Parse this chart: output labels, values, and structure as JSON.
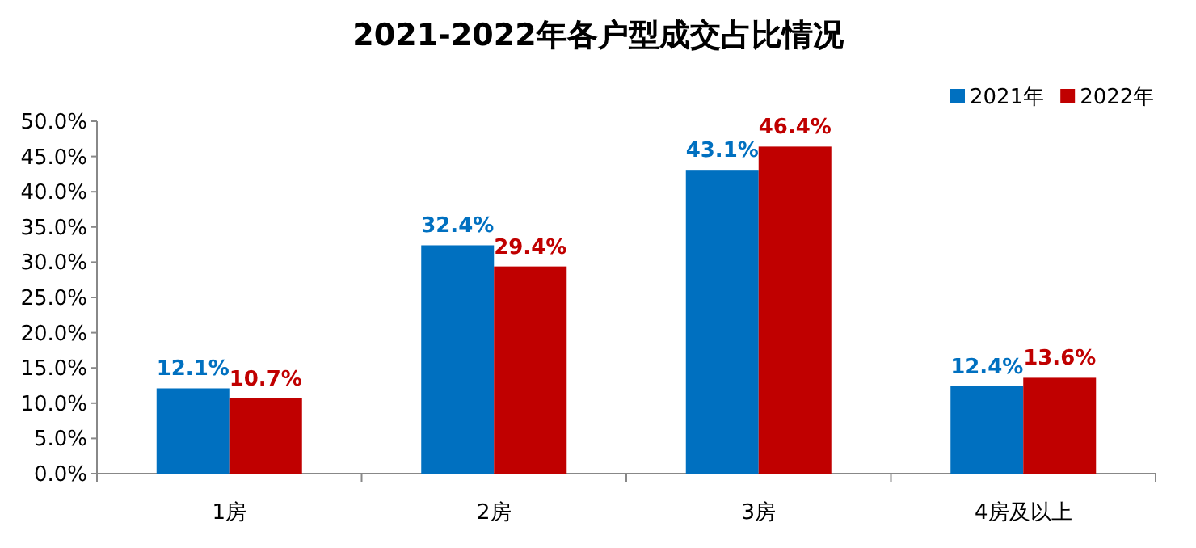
{
  "chart_data": {
    "type": "bar",
    "title": "2021-2022年各户型成交占比情况",
    "categories": [
      "1房",
      "2房",
      "3房",
      "4房及以上"
    ],
    "series": [
      {
        "name": "2021年",
        "color": "#0070c0",
        "values": [
          12.1,
          32.4,
          43.1,
          12.4
        ],
        "value_labels": [
          "12.1%",
          "32.4%",
          "43.1%",
          "12.4%"
        ]
      },
      {
        "name": "2022年",
        "color": "#c00000",
        "values": [
          10.7,
          29.4,
          46.4,
          13.6
        ],
        "value_labels": [
          "10.7%",
          "29.4%",
          "46.4%",
          "13.6%"
        ]
      }
    ],
    "ylim": [
      0,
      50
    ],
    "yticks": [
      {
        "value": 0,
        "label": "0.0%"
      },
      {
        "value": 5,
        "label": "5.0%"
      },
      {
        "value": 10,
        "label": "10.0%"
      },
      {
        "value": 15,
        "label": "15.0%"
      },
      {
        "value": 20,
        "label": "20.0%"
      },
      {
        "value": 25,
        "label": "25.0%"
      },
      {
        "value": 30,
        "label": "30.0%"
      },
      {
        "value": 35,
        "label": "35.0%"
      },
      {
        "value": 40,
        "label": "40.0%"
      },
      {
        "value": 45,
        "label": "45.0%"
      },
      {
        "value": 50,
        "label": "50.0%"
      }
    ],
    "legend": "top right",
    "grid": false
  }
}
